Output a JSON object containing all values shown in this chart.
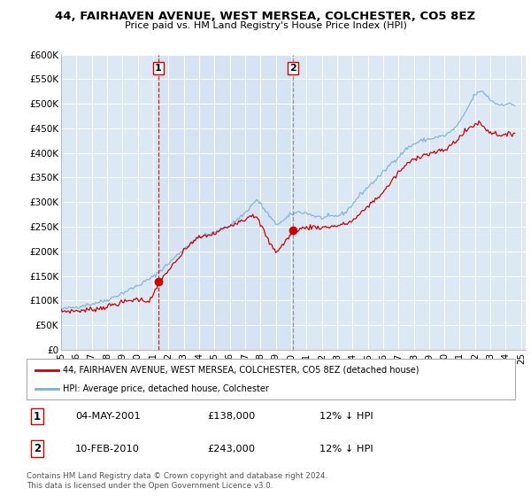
{
  "title_line1": "44, FAIRHAVEN AVENUE, WEST MERSEA, COLCHESTER, CO5 8EZ",
  "title_line2": "Price paid vs. HM Land Registry's House Price Index (HPI)",
  "ylim": [
    0,
    600000
  ],
  "yticks": [
    0,
    50000,
    100000,
    150000,
    200000,
    250000,
    300000,
    350000,
    400000,
    450000,
    500000,
    550000,
    600000
  ],
  "ytick_labels": [
    "£0",
    "£50K",
    "£100K",
    "£150K",
    "£200K",
    "£250K",
    "£300K",
    "£350K",
    "£400K",
    "£450K",
    "£500K",
    "£550K",
    "£600K"
  ],
  "hpi_color": "#7ab0d4",
  "price_color": "#cc0000",
  "bg_color": "#dce9f5",
  "shade_color": "#c8daf0",
  "grid_color": "#ffffff",
  "legend_entry1": "44, FAIRHAVEN AVENUE, WEST MERSEA, COLCHESTER, CO5 8EZ (detached house)",
  "legend_entry2": "HPI: Average price, detached house, Colchester",
  "annotation1_date": "04-MAY-2001",
  "annotation1_price": "£138,000",
  "annotation1_hpi": "12% ↓ HPI",
  "annotation2_date": "10-FEB-2010",
  "annotation2_price": "£243,000",
  "annotation2_hpi": "12% ↓ HPI",
  "footnote": "Contains HM Land Registry data © Crown copyright and database right 2024.\nThis data is licensed under the Open Government Licence v3.0.",
  "x_start": 1995.0,
  "x_end": 2025.3,
  "sale1_x": 2001.34,
  "sale1_y": 138000,
  "sale2_x": 2010.11,
  "sale2_y": 243000,
  "xtick_years": [
    1995,
    1996,
    1997,
    1998,
    1999,
    2000,
    2001,
    2002,
    2003,
    2004,
    2005,
    2006,
    2007,
    2008,
    2009,
    2010,
    2011,
    2012,
    2013,
    2014,
    2015,
    2016,
    2017,
    2018,
    2019,
    2020,
    2021,
    2022,
    2023,
    2024,
    2025
  ]
}
